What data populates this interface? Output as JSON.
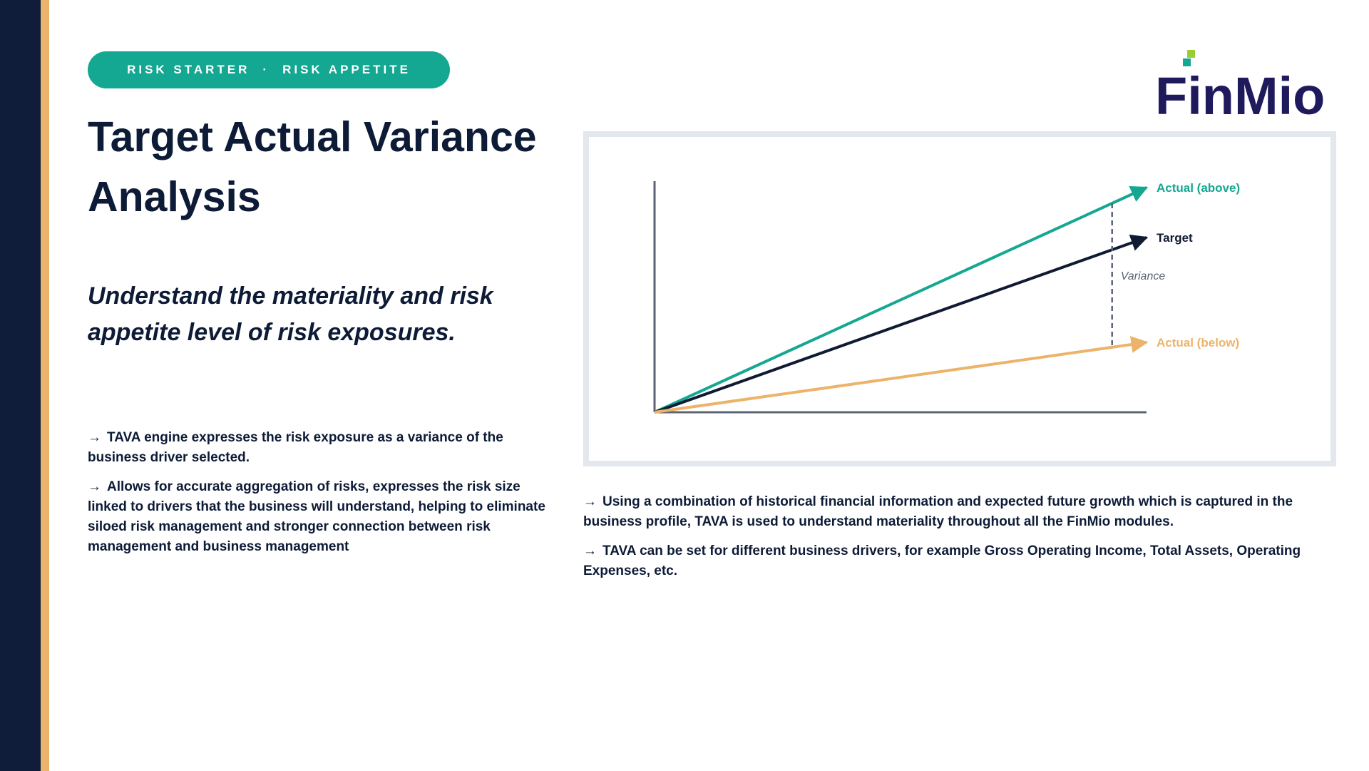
{
  "header": {
    "pill_left": "RISK STARTER",
    "pill_separator": "·",
    "pill_right": "RISK APPETITE",
    "title": "Target Actual Variance Analysis",
    "subtitle": "Understand the materiality and risk appetite level of risk exposures."
  },
  "logo": {
    "text_part1": "F",
    "text_part2": "inMio"
  },
  "left_bullets": [
    "TAVA engine expresses the risk exposure as a variance of the business driver selected.",
    "Allows for accurate aggregation of risks, expresses the risk size linked to drivers that the business will understand, helping to eliminate siloed risk management and stronger connection between risk management and business management"
  ],
  "right_bullets": [
    "Using a combination of historical financial information and expected future growth which is captured in the business profile, TAVA is used to understand materiality throughout all the FinMio modules.",
    "TAVA can be set for different business drivers, for example Gross Operating Income, Total Assets, Operating Expenses, etc."
  ],
  "bullet_glyph": "→",
  "chart_data": {
    "type": "line",
    "title": "",
    "xlabel": "",
    "ylabel": "",
    "series": [
      {
        "name": "Actual (above)",
        "color": "#14a791",
        "x": [
          0,
          1
        ],
        "y": [
          0,
          0.9
        ]
      },
      {
        "name": "Target",
        "color": "#101a33",
        "x": [
          0,
          1
        ],
        "y": [
          0,
          0.7
        ]
      },
      {
        "name": "Actual (below)",
        "color": "#ecb36a",
        "x": [
          0,
          1
        ],
        "y": [
          0,
          0.28
        ]
      }
    ],
    "annotation": {
      "label": "Variance",
      "at_x": 0.93,
      "spans": [
        "Actual (above)",
        "Actual (below)"
      ]
    }
  },
  "colors": {
    "navy": "#0f1d3a",
    "gold": "#ecb36a",
    "teal": "#14a791",
    "axis": "#5b6375"
  }
}
